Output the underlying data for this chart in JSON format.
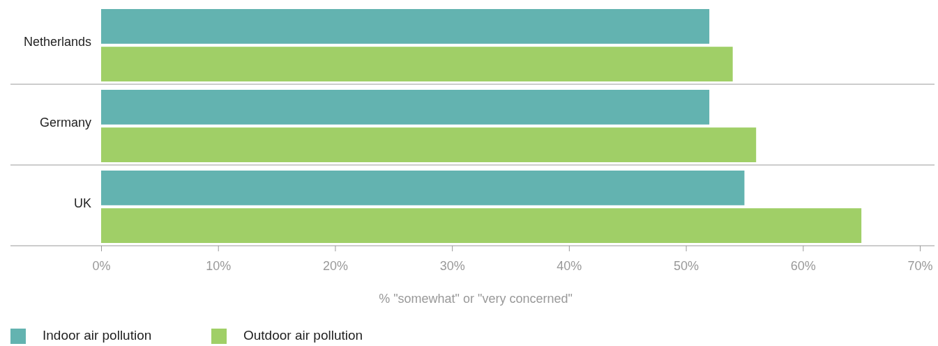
{
  "chart_data": {
    "type": "bar",
    "orientation": "horizontal",
    "xlabel": "% \"somewhat\" or \"very concerned\"",
    "categories": [
      "Netherlands",
      "Germany",
      "UK"
    ],
    "series": [
      {
        "name": "Indoor air pollution",
        "color": "#63b3b0",
        "values": [
          52,
          52,
          55
        ]
      },
      {
        "name": "Outdoor air pollution",
        "color": "#a0cf67",
        "values": [
          54,
          56,
          65
        ]
      }
    ],
    "xlim": [
      0,
      70
    ],
    "xticks": [
      {
        "value": 0,
        "label": "0%"
      },
      {
        "value": 10,
        "label": "10%"
      },
      {
        "value": 20,
        "label": "20%"
      },
      {
        "value": 30,
        "label": "30%"
      },
      {
        "value": 40,
        "label": "40%"
      },
      {
        "value": 50,
        "label": "50%"
      },
      {
        "value": 60,
        "label": "60%"
      },
      {
        "value": 70,
        "label": "70%"
      }
    ],
    "legend": "bottom left",
    "grid": false
  }
}
